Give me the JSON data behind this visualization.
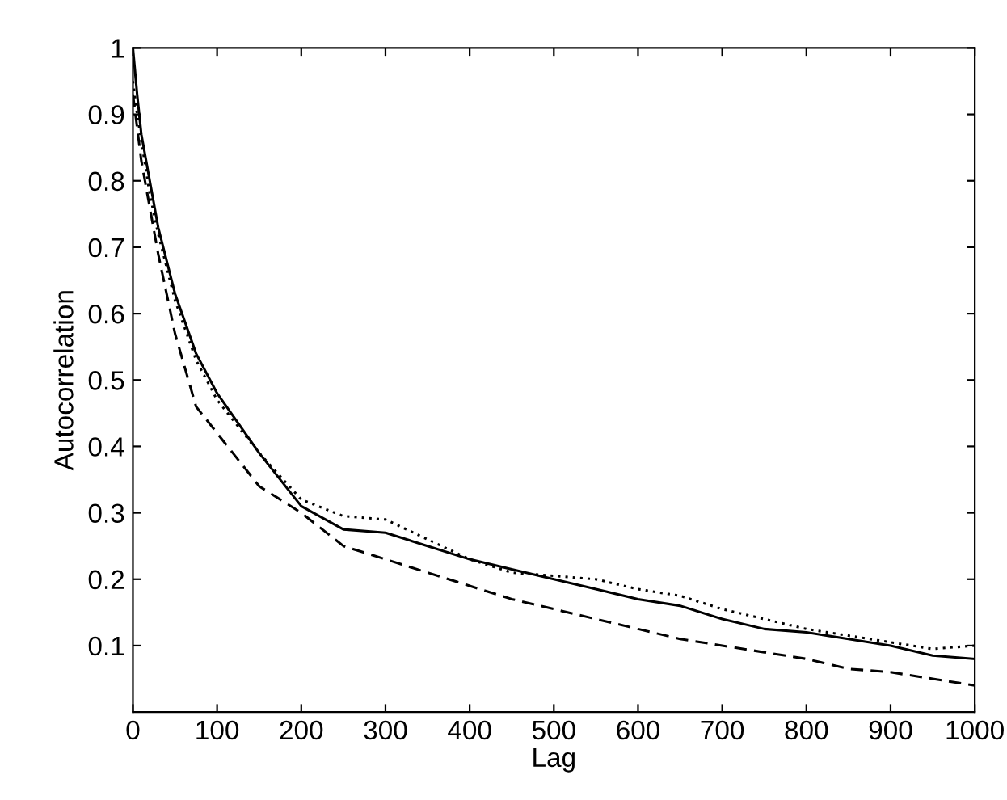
{
  "chart_data": {
    "type": "line",
    "xlabel": "Lag",
    "ylabel": "Autocorrelation",
    "xlim": [
      0,
      1000
    ],
    "xticks": [
      0,
      100,
      200,
      300,
      400,
      500,
      600,
      700,
      800,
      900,
      1000
    ],
    "ylim": [
      0,
      1
    ],
    "yticks": [
      0.1,
      0.2,
      0.3,
      0.4,
      0.5,
      0.6,
      0.7,
      0.8,
      0.9,
      1
    ],
    "grid": false,
    "marker": "none",
    "x": [
      0,
      5,
      10,
      20,
      30,
      50,
      75,
      100,
      150,
      200,
      250,
      300,
      350,
      400,
      450,
      500,
      550,
      600,
      650,
      700,
      750,
      800,
      850,
      900,
      950,
      1000
    ],
    "series": [
      {
        "color": "#000000",
        "line_style": "solid",
        "values": [
          1.0,
          0.93,
          0.87,
          0.8,
          0.73,
          0.63,
          0.54,
          0.48,
          0.39,
          0.31,
          0.275,
          0.27,
          0.25,
          0.23,
          0.215,
          0.2,
          0.185,
          0.17,
          0.16,
          0.14,
          0.125,
          0.12,
          0.11,
          0.1,
          0.085,
          0.08
        ]
      },
      {
        "color": "#000000",
        "line_style": "dotted",
        "values": [
          0.95,
          0.9,
          0.86,
          0.78,
          0.72,
          0.62,
          0.53,
          0.47,
          0.39,
          0.32,
          0.295,
          0.29,
          0.26,
          0.23,
          0.21,
          0.205,
          0.2,
          0.185,
          0.175,
          0.155,
          0.14,
          0.125,
          0.115,
          0.105,
          0.095,
          0.1
        ]
      },
      {
        "color": "#000000",
        "line_style": "dashed",
        "values": [
          0.93,
          0.88,
          0.83,
          0.76,
          0.69,
          0.57,
          0.46,
          0.42,
          0.34,
          0.3,
          0.25,
          0.23,
          0.21,
          0.19,
          0.17,
          0.155,
          0.14,
          0.125,
          0.11,
          0.1,
          0.09,
          0.08,
          0.065,
          0.06,
          0.05,
          0.04
        ]
      }
    ]
  }
}
